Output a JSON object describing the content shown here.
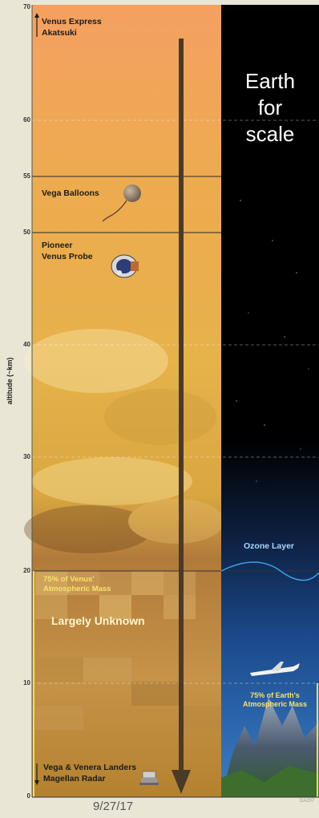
{
  "axis": {
    "label": "altitude (~km)",
    "ticks": [
      "70",
      "60",
      "55",
      "50",
      "40",
      "30",
      "20",
      "10",
      "0"
    ]
  },
  "venus": {
    "missions": {
      "top": [
        "Venus Express",
        "Akatsuki"
      ],
      "balloons": "Vega Balloons",
      "probe": [
        "Pioneer",
        "Venus Probe"
      ],
      "landers": [
        "Vega & Venera Landers",
        "Magellan Radar"
      ]
    },
    "atmospheric_mass": [
      "75% of Venus'",
      "Atmospheric Mass"
    ],
    "unknown": "Largely Unknown"
  },
  "earth": {
    "title": [
      "Earth",
      "for",
      "scale"
    ],
    "ozone": "Ozone Layer",
    "atmospheric_mass": [
      "75% of Earth's",
      "Atmospheric Mass"
    ]
  },
  "footer": {
    "date": "9/27/17",
    "credit": "DA207"
  },
  "colors": {
    "venus_top": "#f2a05e",
    "venus_mid": "#e9b648",
    "venus_bottom": "#b98a3a",
    "space": "#000000",
    "earth_blue": "#1d4d90",
    "highlight": "#f2e05a"
  }
}
